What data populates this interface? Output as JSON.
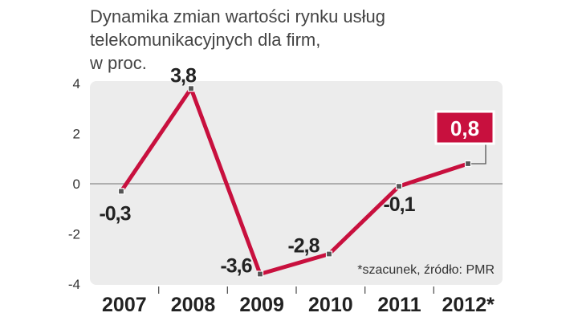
{
  "title_lines": [
    "Dynamika zmian wartości rynku usług",
    "telekomunikacyjnych dla firm,",
    "w proc."
  ],
  "note": "*szacunek, źródło: PMR",
  "colors": {
    "line": "#c8103e",
    "plot_background": "#ececec",
    "text": "#222222",
    "highlight_box": "#c8103e"
  },
  "chart_data": {
    "type": "line",
    "title": "Dynamika zmian wartości rynku usług telekomunikacyjnych dla firm, w proc.",
    "categories": [
      "2007",
      "2008",
      "2009",
      "2010",
      "2011",
      "2012*"
    ],
    "series": [
      {
        "values": [
          -0.3,
          3.8,
          -3.6,
          -2.8,
          -0.1,
          0.8
        ]
      }
    ],
    "data_labels": [
      "-0,3",
      "3,8",
      "-3,6",
      "-2,8",
      "-0,1",
      "0,8"
    ],
    "y_ticks": [
      4,
      2,
      0,
      -2,
      -4
    ],
    "y_tick_labels": [
      "4",
      "2",
      "0",
      "-2",
      "-4"
    ],
    "ylim": [
      -4,
      4
    ],
    "highlight_index": 5,
    "zero_line": true,
    "grid": false,
    "legend": "none"
  }
}
